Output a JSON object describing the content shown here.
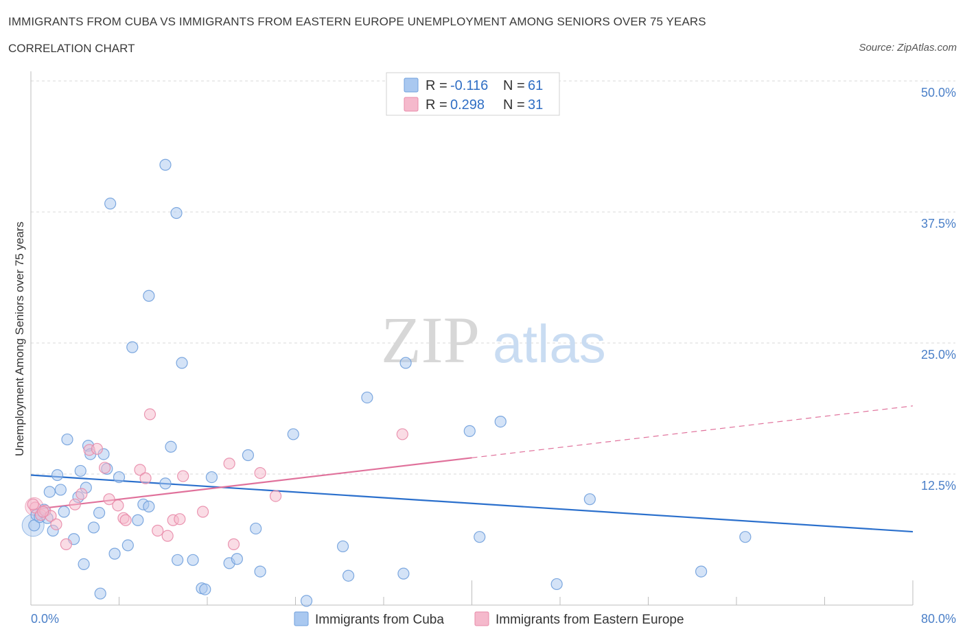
{
  "title": "IMMIGRANTS FROM CUBA VS IMMIGRANTS FROM EASTERN EUROPE UNEMPLOYMENT AMONG SENIORS OVER 75 YEARS",
  "subtitle": "CORRELATION CHART",
  "source": "Source: ZipAtlas.com",
  "watermark": {
    "zip": "ZIP",
    "atlas": "atlas"
  },
  "legend_top": {
    "r_label": "R =",
    "n_label": "N =",
    "rows": [
      {
        "r": "-0.116",
        "n": "61"
      },
      {
        "r": "0.298",
        "n": "31"
      }
    ]
  },
  "colors": {
    "cuba_fill": "#a9c8f0",
    "cuba_stroke": "#6f9fdc",
    "cuba_line": "#2a6fcc",
    "ee_fill": "#f5b9cc",
    "ee_stroke": "#e88aa8",
    "ee_line": "#e0719b",
    "grid": "#d9d9d9",
    "tick": "#4a7fc8"
  },
  "chart_data": {
    "type": "scatter",
    "title": "IMMIGRANTS FROM CUBA VS IMMIGRANTS FROM EASTERN EUROPE UNEMPLOYMENT AMONG SENIORS OVER 75 YEARS",
    "xlabel": "",
    "ylabel": "Unemployment Among Seniors over 75 years",
    "xlim": [
      0,
      80
    ],
    "ylim": [
      0,
      50
    ],
    "x_ticks": [
      "0.0%",
      "80.0%"
    ],
    "y_ticks": [
      {
        "value": 12.5,
        "label": "12.5%"
      },
      {
        "value": 25.0,
        "label": "25.0%"
      },
      {
        "value": 37.5,
        "label": "37.5%"
      },
      {
        "value": 50.0,
        "label": "50.0%"
      }
    ],
    "series": [
      {
        "name": "Immigrants from Cuba",
        "r": -0.116,
        "n": 61,
        "trend": {
          "x0": 0,
          "y0": 12.4,
          "x1": 80,
          "y1": 7.0,
          "dashed_from": null
        },
        "points": [
          [
            0.3,
            7.6
          ],
          [
            0.5,
            8.6
          ],
          [
            0.8,
            8.4
          ],
          [
            1.2,
            9.1
          ],
          [
            1.5,
            8.3
          ],
          [
            1.7,
            10.8
          ],
          [
            2.0,
            7.1
          ],
          [
            2.4,
            12.4
          ],
          [
            2.7,
            11.0
          ],
          [
            3.0,
            8.9
          ],
          [
            3.3,
            15.8
          ],
          [
            3.9,
            6.3
          ],
          [
            4.3,
            10.3
          ],
          [
            4.5,
            12.8
          ],
          [
            4.8,
            3.9
          ],
          [
            5.0,
            11.2
          ],
          [
            5.2,
            15.2
          ],
          [
            5.4,
            14.4
          ],
          [
            5.7,
            7.4
          ],
          [
            6.2,
            8.8
          ],
          [
            6.3,
            1.1
          ],
          [
            6.6,
            14.4
          ],
          [
            6.9,
            13.0
          ],
          [
            7.2,
            38.3
          ],
          [
            7.6,
            4.9
          ],
          [
            8.0,
            12.2
          ],
          [
            8.8,
            5.7
          ],
          [
            9.2,
            24.6
          ],
          [
            9.7,
            8.1
          ],
          [
            10.2,
            9.6
          ],
          [
            10.7,
            9.4
          ],
          [
            10.7,
            29.5
          ],
          [
            12.2,
            11.6
          ],
          [
            12.2,
            42.0
          ],
          [
            12.7,
            15.1
          ],
          [
            13.2,
            37.4
          ],
          [
            13.3,
            4.3
          ],
          [
            13.7,
            23.1
          ],
          [
            14.7,
            4.3
          ],
          [
            15.5,
            1.6
          ],
          [
            15.8,
            1.5
          ],
          [
            16.4,
            12.2
          ],
          [
            18.0,
            4.0
          ],
          [
            18.7,
            4.4
          ],
          [
            19.7,
            14.3
          ],
          [
            20.4,
            7.3
          ],
          [
            20.8,
            3.2
          ],
          [
            23.8,
            16.3
          ],
          [
            25.0,
            0.4
          ],
          [
            28.3,
            5.6
          ],
          [
            28.8,
            2.8
          ],
          [
            30.5,
            19.8
          ],
          [
            33.8,
            3.0
          ],
          [
            34.0,
            23.1
          ],
          [
            39.8,
            16.6
          ],
          [
            40.7,
            6.5
          ],
          [
            42.6,
            17.5
          ],
          [
            47.7,
            2.0
          ],
          [
            50.7,
            10.1
          ],
          [
            60.8,
            3.2
          ],
          [
            64.8,
            6.5
          ]
        ]
      },
      {
        "name": "Immigrants from Eastern Europe",
        "r": 0.298,
        "n": 31,
        "trend": {
          "x0": 0,
          "y0": 9.1,
          "x1": 80,
          "y1": 19.0,
          "dashed_from": 40
        },
        "points": [
          [
            0.4,
            9.3
          ],
          [
            0.9,
            8.6
          ],
          [
            1.3,
            9.0
          ],
          [
            1.8,
            8.5
          ],
          [
            2.3,
            7.7
          ],
          [
            3.2,
            5.8
          ],
          [
            4.0,
            9.6
          ],
          [
            4.6,
            10.6
          ],
          [
            5.3,
            14.8
          ],
          [
            6.0,
            14.9
          ],
          [
            6.7,
            13.1
          ],
          [
            7.1,
            10.1
          ],
          [
            7.9,
            9.5
          ],
          [
            8.4,
            8.3
          ],
          [
            8.6,
            8.1
          ],
          [
            9.9,
            12.9
          ],
          [
            10.4,
            12.1
          ],
          [
            10.8,
            18.2
          ],
          [
            11.5,
            7.1
          ],
          [
            12.4,
            6.6
          ],
          [
            12.9,
            8.1
          ],
          [
            13.5,
            8.2
          ],
          [
            13.8,
            12.3
          ],
          [
            15.6,
            8.9
          ],
          [
            18.0,
            13.5
          ],
          [
            18.4,
            5.8
          ],
          [
            20.8,
            12.6
          ],
          [
            22.2,
            10.4
          ],
          [
            33.7,
            16.3
          ],
          [
            0.2,
            9.6
          ],
          [
            1.1,
            8.9
          ]
        ]
      }
    ]
  },
  "bottom_legend": [
    "Immigrants from Cuba",
    "Immigrants from Eastern Europe"
  ]
}
